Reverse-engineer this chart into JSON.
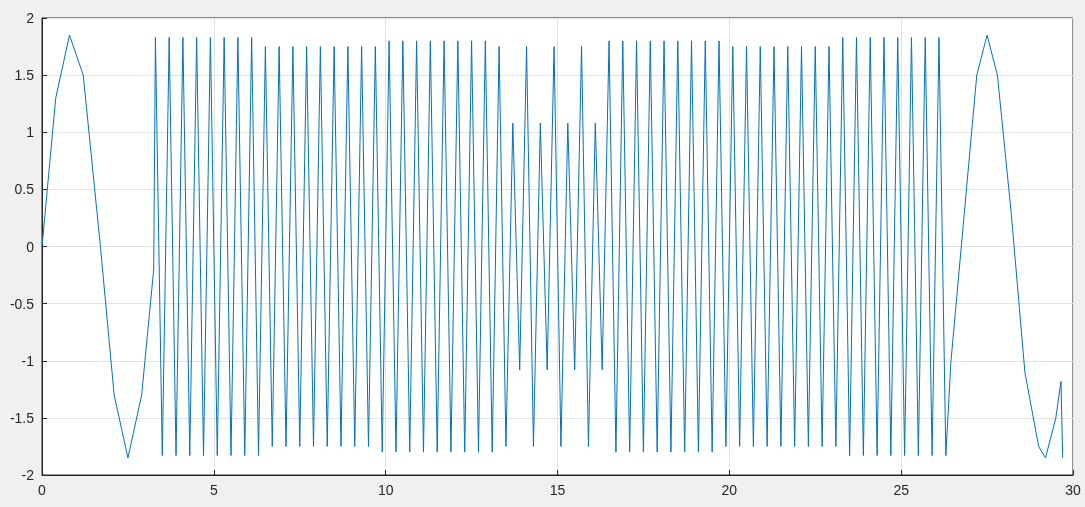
{
  "chart_data": {
    "type": "line",
    "xlim": [
      0,
      30
    ],
    "xticks": [
      0,
      5,
      10,
      15,
      20,
      25,
      30
    ],
    "ylim": [
      -2,
      2
    ],
    "yticks": [
      -2,
      -1.5,
      -1,
      -0.5,
      0,
      0.5,
      1,
      1.5,
      2
    ],
    "grid": true,
    "marker": "none",
    "line_style": "solid",
    "series": [
      {
        "color": "#0072bd",
        "x": [
          0,
          0.4,
          0.8,
          1.2,
          1.7,
          2.1,
          2.5,
          2.9,
          3.25,
          3.3,
          3.5,
          3.7,
          3.9,
          4.1,
          4.3,
          4.5,
          4.7,
          4.9,
          5.1,
          5.3,
          5.5,
          5.7,
          5.9,
          6.1,
          6.3,
          6.5,
          6.7,
          6.9,
          7.1,
          7.3,
          7.5,
          7.7,
          7.9,
          8.1,
          8.3,
          8.5,
          8.7,
          8.9,
          9.1,
          9.3,
          9.5,
          9.7,
          9.9,
          10.1,
          10.3,
          10.5,
          10.7,
          10.9,
          11.1,
          11.3,
          11.5,
          11.7,
          11.9,
          12.1,
          12.3,
          12.5,
          12.7,
          12.9,
          13.1,
          13.3,
          13.5,
          13.7,
          13.9,
          14.1,
          14.3,
          14.5,
          14.7,
          14.9,
          15.1,
          15.3,
          15.5,
          15.7,
          15.9,
          16.1,
          16.3,
          16.5,
          16.7,
          16.9,
          17.1,
          17.3,
          17.5,
          17.7,
          17.9,
          18.1,
          18.3,
          18.5,
          18.7,
          18.9,
          19.1,
          19.3,
          19.5,
          19.7,
          19.9,
          20.1,
          20.3,
          20.5,
          20.7,
          20.9,
          21.1,
          21.3,
          21.5,
          21.7,
          21.9,
          22.1,
          22.3,
          22.5,
          22.7,
          22.9,
          23.1,
          23.3,
          23.5,
          23.7,
          23.9,
          24.1,
          24.3,
          24.5,
          24.7,
          24.9,
          25.1,
          25.3,
          25.5,
          25.7,
          25.9,
          26.1,
          26.3,
          26.45,
          26.9,
          27.2,
          27.5,
          27.8,
          28.2,
          28.6,
          29.0,
          29.2,
          29.5,
          29.65,
          29.7
        ],
        "values": [
          0,
          1.3,
          1.85,
          1.5,
          0,
          -1.3,
          -1.85,
          -1.3,
          -0.2,
          1.83,
          -1.83,
          1.83,
          -1.83,
          1.83,
          -1.83,
          1.83,
          -1.83,
          1.83,
          -1.83,
          1.83,
          -1.83,
          1.83,
          -1.83,
          1.83,
          -1.83,
          1.75,
          -1.75,
          1.75,
          -1.75,
          1.75,
          -1.75,
          1.75,
          -1.75,
          1.75,
          -1.75,
          1.75,
          -1.75,
          1.75,
          -1.75,
          1.75,
          -1.75,
          1.75,
          -1.8,
          1.8,
          -1.8,
          1.8,
          -1.8,
          1.8,
          -1.8,
          1.8,
          -1.8,
          1.8,
          -1.8,
          1.8,
          -1.8,
          1.8,
          -1.8,
          1.8,
          -1.8,
          1.75,
          -1.75,
          1.08,
          -1.08,
          1.75,
          -1.75,
          1.08,
          -1.08,
          1.75,
          -1.75,
          1.08,
          -1.08,
          1.75,
          -1.75,
          1.08,
          -1.08,
          1.8,
          -1.8,
          1.8,
          -1.8,
          1.8,
          -1.8,
          1.8,
          -1.8,
          1.8,
          -1.8,
          1.8,
          -1.8,
          1.8,
          -1.8,
          1.8,
          -1.8,
          1.8,
          -1.75,
          1.75,
          -1.75,
          1.75,
          -1.75,
          1.75,
          -1.75,
          1.75,
          -1.75,
          1.75,
          -1.75,
          1.75,
          -1.75,
          1.75,
          -1.75,
          1.75,
          -1.75,
          1.83,
          -1.83,
          1.83,
          -1.83,
          1.83,
          -1.83,
          1.83,
          -1.83,
          1.83,
          -1.83,
          1.83,
          -1.83,
          1.83,
          -1.83,
          1.83,
          -1.83,
          -1,
          0.5,
          1.5,
          1.85,
          1.5,
          0.3,
          -1.1,
          -1.75,
          -1.85,
          -1.5,
          -1.18,
          -1.85
        ]
      }
    ]
  }
}
